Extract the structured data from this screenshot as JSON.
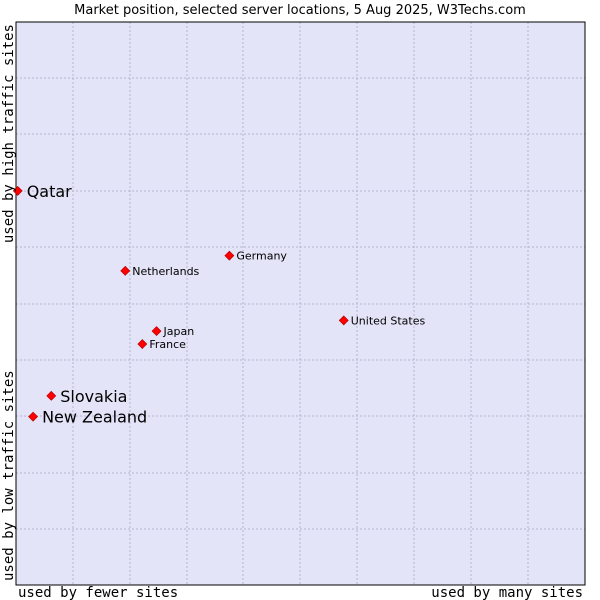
{
  "chart_data": {
    "type": "scatter",
    "title": "Market position, selected server locations, 5 Aug 2025, W3Techs.com",
    "xlabel_left": "used by fewer sites",
    "xlabel_right": "used by many sites",
    "ylabel_bottom": "used by low traffic sites",
    "ylabel_top": "used by high traffic sites",
    "xlim": [
      0,
      100
    ],
    "ylim": [
      0,
      100
    ],
    "grid": true,
    "colors": {
      "plot_bg": "#e4e4f8",
      "grid": "#b4b4cc",
      "point": "#ff0000",
      "frame": "#000000"
    },
    "points": [
      {
        "name": "Qatar",
        "x": 0.3,
        "y": 70.0,
        "highlight": true
      },
      {
        "name": "Germany",
        "x": 37.5,
        "y": 58.5,
        "highlight": false
      },
      {
        "name": "Netherlands",
        "x": 19.2,
        "y": 55.8,
        "highlight": false
      },
      {
        "name": "United States",
        "x": 57.6,
        "y": 47.0,
        "highlight": false
      },
      {
        "name": "Japan",
        "x": 24.7,
        "y": 45.1,
        "highlight": false
      },
      {
        "name": "France",
        "x": 22.2,
        "y": 42.8,
        "highlight": false
      },
      {
        "name": "Slovakia",
        "x": 6.2,
        "y": 33.6,
        "highlight": true
      },
      {
        "name": "New Zealand",
        "x": 3.0,
        "y": 29.9,
        "highlight": true
      }
    ]
  }
}
